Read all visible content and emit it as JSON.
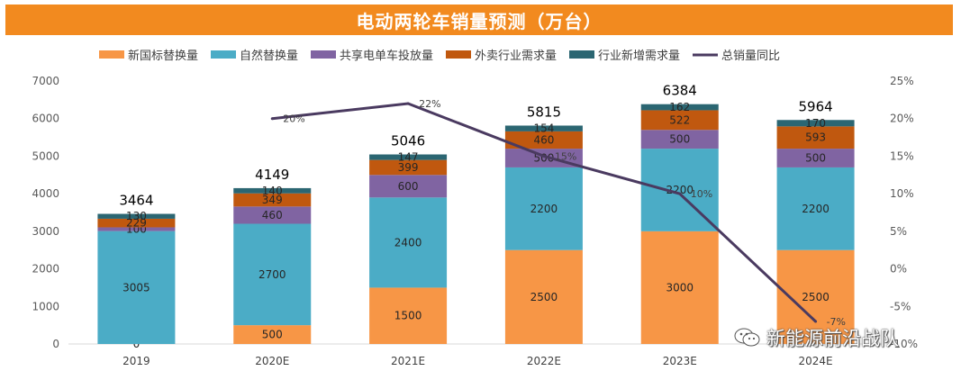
{
  "chart_data": {
    "type": "bar",
    "stacked": true,
    "title": "电动两轮车销量预测（万台）",
    "categories": [
      "2019",
      "2020E",
      "2021E",
      "2022E",
      "2023E",
      "2024E"
    ],
    "series": [
      {
        "name": "新国标替换量",
        "color": "#f79646",
        "values": [
          0,
          500,
          1500,
          2500,
          3000,
          2500
        ]
      },
      {
        "name": "自然替换量",
        "color": "#4bacc6",
        "values": [
          3005,
          2700,
          2400,
          2200,
          2200,
          2200
        ]
      },
      {
        "name": "共享电单车投放量",
        "color": "#8064a2",
        "values": [
          100,
          460,
          600,
          500,
          500,
          500
        ]
      },
      {
        "name": "外卖行业需求量",
        "color": "#c0580f",
        "values": [
          229,
          349,
          399,
          460,
          522,
          593
        ]
      },
      {
        "name": "行业新增需求量",
        "color": "#2b6672",
        "values": [
          130,
          140,
          147,
          154,
          162,
          170
        ]
      }
    ],
    "totals": [
      "3464",
      "4149",
      "5046",
      "5815",
      "6384",
      "5964"
    ],
    "line": {
      "name": "总销量同比",
      "color": "#4a3a60",
      "values": [
        null,
        20,
        22,
        15,
        10,
        -7
      ],
      "labels": [
        "",
        "20%",
        "22%",
        "15%",
        "10%",
        "-7%"
      ]
    },
    "y_left": {
      "min": 0,
      "max": 7000,
      "ticks": [
        "0",
        "1000",
        "2000",
        "3000",
        "4000",
        "5000",
        "6000",
        "7000"
      ]
    },
    "y_right": {
      "min": -10,
      "max": 25,
      "ticks": [
        "-10%",
        "-5%",
        "0%",
        "5%",
        "10%",
        "15%",
        "20%",
        "25%"
      ]
    },
    "legend_position": "top"
  },
  "watermark": "新能源前沿战队"
}
